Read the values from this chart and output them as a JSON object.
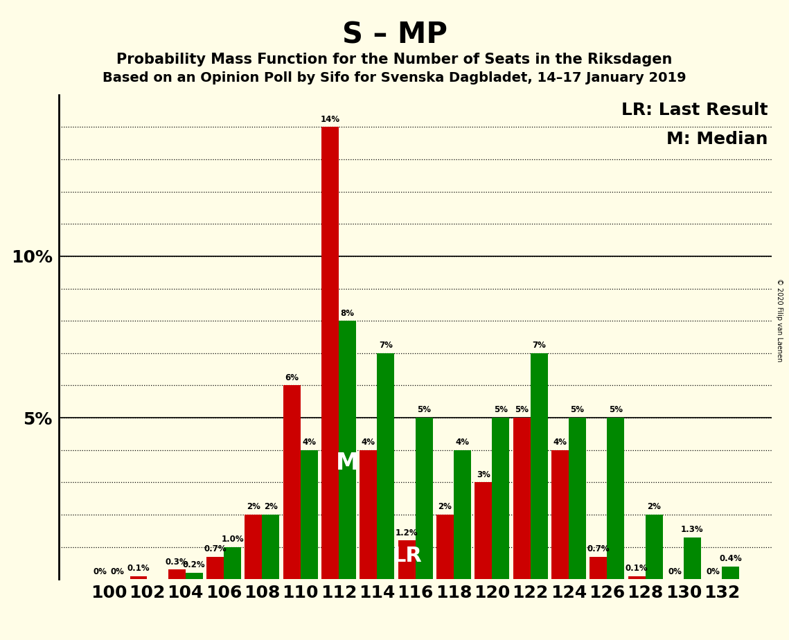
{
  "title": "S – MP",
  "subtitle1": "Probability Mass Function for the Number of Seats in the Riksdagen",
  "subtitle2": "Based on an Opinion Poll by Sifo for Svenska Dagbladet, 14–17 January 2019",
  "legend_lr": "LR: Last Result",
  "legend_m": "M: Median",
  "copyright": "© 2020 Filip van Laenen",
  "seats": [
    100,
    102,
    104,
    106,
    108,
    110,
    112,
    114,
    116,
    118,
    120,
    122,
    124,
    126,
    128,
    130,
    132
  ],
  "red_vals": [
    0.0,
    0.1,
    0.3,
    0.7,
    2.0,
    6.0,
    14.0,
    4.0,
    1.2,
    2.0,
    3.0,
    5.0,
    4.0,
    0.7,
    0.1,
    0.0,
    0.0
  ],
  "green_vals": [
    0.0,
    0.0,
    0.2,
    1.0,
    2.0,
    4.0,
    8.0,
    7.0,
    5.0,
    4.0,
    5.0,
    7.0,
    5.0,
    5.0,
    2.0,
    1.3,
    0.4
  ],
  "red_labels": [
    "0%",
    "0.1%",
    "0.3%",
    "0.7%",
    "2%",
    "6%",
    "14%",
    "4%",
    "1.2%",
    "2%",
    "3%",
    "5%",
    "4%",
    "0.7%",
    "0.1%",
    "0%",
    "0%"
  ],
  "green_labels": [
    "0%",
    "",
    "0.2%",
    "1.0%",
    "2%",
    "4%",
    "8%",
    "7%",
    "5%",
    "4%",
    "5%",
    "7%",
    "5%",
    "5%",
    "2%",
    "1.3%",
    "0.4%"
  ],
  "red_color": "#cc0000",
  "green_color": "#008800",
  "background_color": "#fffde7",
  "median_idx": 6,
  "lr_idx": 8,
  "bar_width": 0.9,
  "ylim": [
    0,
    15
  ],
  "yticks": [
    5,
    10
  ],
  "ytick_labels": [
    "5%",
    "10%"
  ],
  "grid_lines": [
    1,
    2,
    3,
    4,
    5,
    6,
    7,
    8,
    9,
    10,
    11,
    12,
    13,
    14
  ],
  "label_fontsize": 8.5,
  "tick_fontsize": 18,
  "title_fontsize": 30,
  "sub1_fontsize": 15,
  "sub2_fontsize": 14,
  "legend_fontsize": 18
}
